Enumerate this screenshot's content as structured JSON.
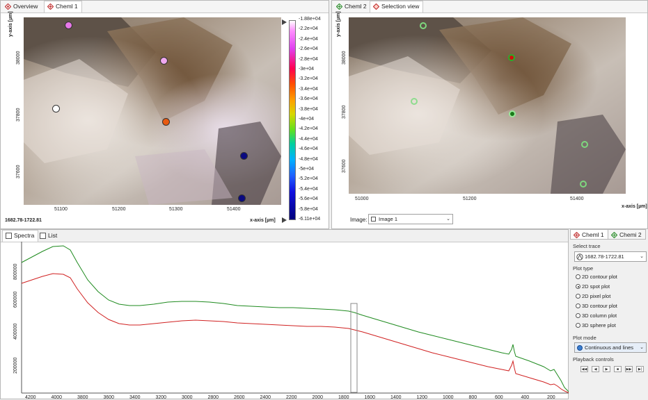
{
  "left_pane": {
    "tabs": [
      {
        "label": "Overview"
      },
      {
        "label": "Cheml 1"
      }
    ],
    "y_axis_label": "y-axis [µm]",
    "x_axis_label": "x-axis [µm]",
    "x_ticks": [
      "51100",
      "51200",
      "51300",
      "51400"
    ],
    "y_ticks": [
      "38000",
      "37800",
      "37600"
    ],
    "trace_label": "1682.78-1722.81",
    "colorbar_labels": [
      "-1.88e+04",
      "-2.2e+04",
      "-2.4e+04",
      "-2.6e+04",
      "-2.8e+04",
      "-3e+04",
      "-3.2e+04",
      "-3.4e+04",
      "-3.6e+04",
      "-3.8e+04",
      "-4e+04",
      "-4.2e+04",
      "-4.4e+04",
      "-4.6e+04",
      "-4.8e+04",
      "-5e+04",
      "-5.2e+04",
      "-5.4e+04",
      "-5.6e+04",
      "-5.8e+04",
      "-6.11e+04"
    ],
    "spot_colors": [
      "#e878e8",
      "#f0a8f0",
      "#ffffff",
      "#e85a10",
      "#0a0a80",
      "#0a0a80"
    ]
  },
  "right_pane": {
    "tabs": [
      {
        "label": "Cheml 2"
      },
      {
        "label": "Selection view"
      }
    ],
    "y_axis_label": "y-axis [µm]",
    "x_axis_label": "x-axis [µm]",
    "x_ticks": [
      "51000",
      "51200",
      "51400"
    ],
    "y_ticks": [
      "38000",
      "37800",
      "37600"
    ],
    "image_label": "Image:",
    "image_value": "Image 1"
  },
  "bottom": {
    "tabs": [
      {
        "label": "Spectra"
      },
      {
        "label": "List"
      }
    ],
    "y_ticks": [
      "800000",
      "600000",
      "400000",
      "200000"
    ],
    "x_ticks": [
      "4200",
      "4000",
      "3800",
      "3600",
      "3400",
      "3200",
      "3000",
      "2800",
      "2600",
      "2400",
      "2200",
      "2000",
      "1800",
      "1600",
      "1400",
      "1200",
      "1000",
      "800",
      "600",
      "400",
      "200"
    ]
  },
  "side_panel": {
    "tabs": [
      {
        "label": "Cheml 1"
      },
      {
        "label": "Chemi 2"
      }
    ],
    "select_trace_heading": "Select trace",
    "trace_value": "1682.78-1722.81",
    "plot_type_heading": "Plot type",
    "plot_types": [
      {
        "label": "2D contour plot",
        "selected": false
      },
      {
        "label": "2D spot plot",
        "selected": true
      },
      {
        "label": "2D pixel plot",
        "selected": false
      },
      {
        "label": "3D contour plot",
        "selected": false
      },
      {
        "label": "3D column plot",
        "selected": false
      },
      {
        "label": "3D sphere plot",
        "selected": false
      }
    ],
    "plot_mode_heading": "Plot mode",
    "plot_mode_value": "Continuous and lines",
    "playback_heading": "Playback controls"
  },
  "colors": {
    "green_trace": "#1e8a1e",
    "red_trace": "#d02020"
  }
}
